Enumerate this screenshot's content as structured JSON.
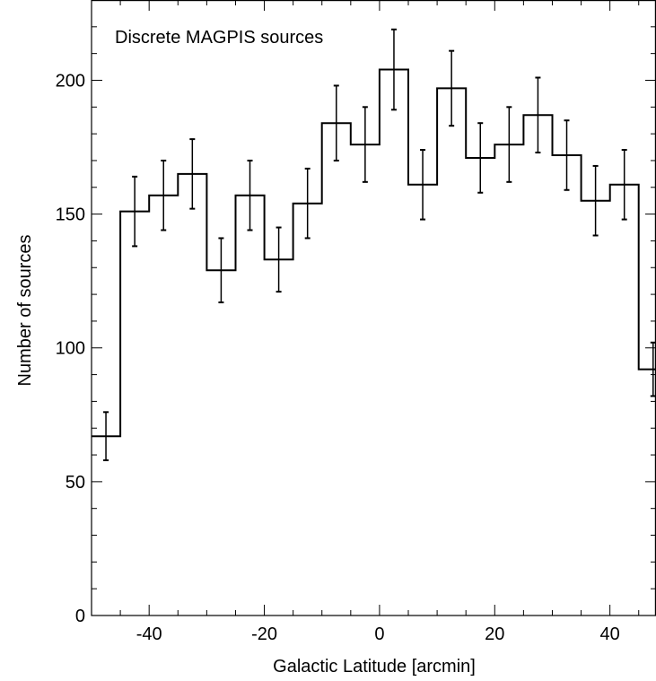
{
  "chart_data": {
    "type": "histogram",
    "title": "",
    "annotation": "Discrete MAGPIS sources",
    "xlabel": "Galactic Latitude [arcmin]",
    "ylabel": "Number of sources",
    "xlim": [
      -50,
      48
    ],
    "ylim": [
      0,
      230
    ],
    "x_ticks": [
      -40,
      -20,
      0,
      20,
      40
    ],
    "y_ticks": [
      0,
      50,
      100,
      150,
      200
    ],
    "x_minor_step": 5,
    "y_minor_step": 10,
    "bin_width": 5,
    "grid": false,
    "line_color": "#000000",
    "bins": [
      {
        "x": -47.5,
        "value": 67,
        "error": 9
      },
      {
        "x": -42.5,
        "value": 151,
        "error": 13
      },
      {
        "x": -37.5,
        "value": 157,
        "error": 13
      },
      {
        "x": -32.5,
        "value": 165,
        "error": 13
      },
      {
        "x": -27.5,
        "value": 129,
        "error": 12
      },
      {
        "x": -22.5,
        "value": 157,
        "error": 13
      },
      {
        "x": -17.5,
        "value": 133,
        "error": 12
      },
      {
        "x": -12.5,
        "value": 154,
        "error": 13
      },
      {
        "x": -7.5,
        "value": 184,
        "error": 14
      },
      {
        "x": -2.5,
        "value": 176,
        "error": 14
      },
      {
        "x": 2.5,
        "value": 204,
        "error": 15
      },
      {
        "x": 7.5,
        "value": 161,
        "error": 13
      },
      {
        "x": 12.5,
        "value": 197,
        "error": 14
      },
      {
        "x": 17.5,
        "value": 171,
        "error": 13
      },
      {
        "x": 22.5,
        "value": 176,
        "error": 14
      },
      {
        "x": 27.5,
        "value": 187,
        "error": 14
      },
      {
        "x": 32.5,
        "value": 172,
        "error": 13
      },
      {
        "x": 37.5,
        "value": 155,
        "error": 13
      },
      {
        "x": 42.5,
        "value": 161,
        "error": 13
      },
      {
        "x": 47.5,
        "value": 92,
        "error": 10
      }
    ]
  }
}
